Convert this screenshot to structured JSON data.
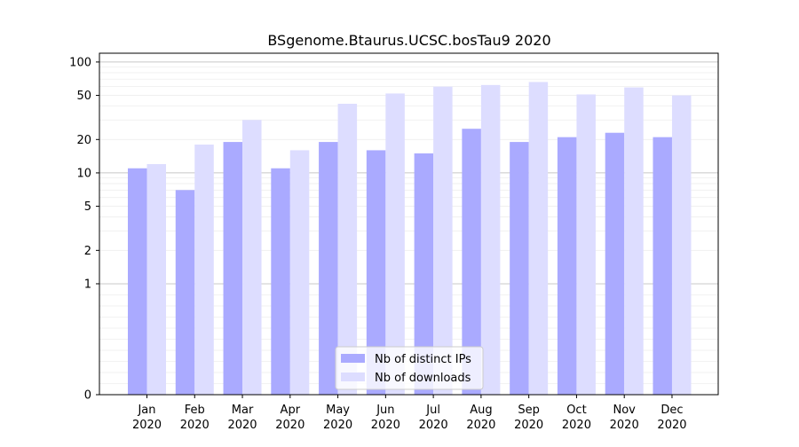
{
  "chart_data": {
    "type": "bar",
    "title": "BSgenome.Btaurus.UCSC.bosTau9 2020",
    "xlabel": "",
    "ylabel": "",
    "y_scale": "symlog",
    "ylim": [
      0,
      120
    ],
    "y_ticks": [
      0,
      1,
      2,
      5,
      10,
      20,
      50,
      100
    ],
    "categories": [
      [
        "Jan",
        "2020"
      ],
      [
        "Feb",
        "2020"
      ],
      [
        "Mar",
        "2020"
      ],
      [
        "Apr",
        "2020"
      ],
      [
        "May",
        "2020"
      ],
      [
        "Jun",
        "2020"
      ],
      [
        "Jul",
        "2020"
      ],
      [
        "Aug",
        "2020"
      ],
      [
        "Sep",
        "2020"
      ],
      [
        "Oct",
        "2020"
      ],
      [
        "Nov",
        "2020"
      ],
      [
        "Dec",
        "2020"
      ]
    ],
    "series": [
      {
        "name": "Nb of distinct IPs",
        "color": "#aaaaff",
        "values": [
          11,
          7,
          19,
          11,
          19,
          16,
          15,
          25,
          19,
          21,
          23,
          21
        ]
      },
      {
        "name": "Nb of downloads",
        "color": "#ddddff",
        "values": [
          12,
          18,
          30,
          16,
          42,
          52,
          60,
          62,
          66,
          51,
          59,
          50
        ]
      }
    ],
    "grid": true,
    "legend_position": "lower-center"
  }
}
